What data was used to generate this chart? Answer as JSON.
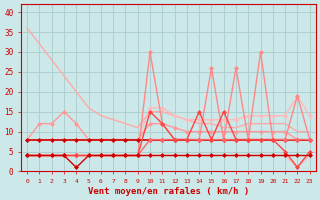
{
  "x": [
    0,
    1,
    2,
    3,
    4,
    5,
    6,
    7,
    8,
    9,
    10,
    11,
    12,
    13,
    14,
    15,
    16,
    17,
    18,
    19,
    20,
    21,
    22,
    23
  ],
  "lines": [
    {
      "y": [
        36,
        32,
        28,
        24,
        20,
        16,
        14,
        13,
        12,
        11,
        15,
        15,
        14,
        13,
        12,
        12,
        11,
        11,
        12,
        12,
        12,
        12,
        10,
        10
      ],
      "color": "#ffaaaa",
      "lw": 1.0,
      "marker": null,
      "zorder": 2
    },
    {
      "y": [
        8,
        8,
        8,
        8,
        8,
        8,
        8,
        8,
        8,
        8,
        16,
        16,
        14,
        13,
        13,
        13,
        13,
        13,
        14,
        14,
        14,
        14,
        19,
        14
      ],
      "color": "#ffbbbb",
      "lw": 1.0,
      "marker": "D",
      "ms": 2.0,
      "zorder": 3
    },
    {
      "y": [
        8,
        12,
        12,
        15,
        12,
        8,
        8,
        8,
        8,
        8,
        12,
        12,
        11,
        10,
        10,
        10,
        10,
        10,
        10,
        10,
        10,
        10,
        8,
        8
      ],
      "color": "#ff9999",
      "lw": 1.0,
      "marker": "D",
      "ms": 2.0,
      "zorder": 3
    },
    {
      "y": [
        8,
        8,
        8,
        8,
        8,
        8,
        8,
        8,
        8,
        8,
        8,
        8,
        8,
        8,
        8,
        8,
        8,
        8,
        8,
        8,
        8,
        8,
        8,
        8
      ],
      "color": "#cc0000",
      "lw": 1.2,
      "marker": "D",
      "ms": 2.0,
      "zorder": 4
    },
    {
      "y": [
        4,
        4,
        4,
        4,
        4,
        4,
        4,
        4,
        4,
        4,
        8,
        8,
        8,
        8,
        8,
        8,
        8,
        8,
        8,
        8,
        8,
        8,
        8,
        8
      ],
      "color": "#ff6666",
      "lw": 1.0,
      "marker": "D",
      "ms": 2.0,
      "zorder": 4
    },
    {
      "y": [
        4,
        4,
        4,
        4,
        4,
        4,
        4,
        4,
        4,
        4,
        15,
        12,
        8,
        8,
        15,
        8,
        15,
        8,
        8,
        8,
        8,
        5,
        1,
        5
      ],
      "color": "#ff4444",
      "lw": 1.0,
      "marker": "D",
      "ms": 2.0,
      "zorder": 4
    },
    {
      "y": [
        4,
        4,
        4,
        4,
        1,
        4,
        4,
        4,
        4,
        4,
        4,
        4,
        4,
        4,
        4,
        4,
        4,
        4,
        4,
        4,
        4,
        4,
        4,
        4
      ],
      "color": "#cc0000",
      "lw": 1.0,
      "marker": "D",
      "ms": 2.0,
      "zorder": 4
    },
    {
      "y": [
        4,
        4,
        4,
        4,
        4,
        4,
        4,
        4,
        4,
        4,
        30,
        12,
        8,
        8,
        8,
        26,
        8,
        26,
        8,
        30,
        8,
        8,
        19,
        8
      ],
      "color": "#ff8888",
      "lw": 1.0,
      "marker": "D",
      "ms": 2.0,
      "zorder": 3
    },
    {
      "y": [
        4,
        4,
        4,
        4,
        4,
        4,
        4,
        4,
        4,
        4,
        4,
        4,
        4,
        4,
        4,
        4,
        4,
        4,
        4,
        4,
        4,
        4,
        1,
        4
      ],
      "color": "#ffbbbb",
      "lw": 1.0,
      "marker": "D",
      "ms": 2.0,
      "zorder": 2
    }
  ],
  "bg_color": "#cce8e8",
  "grid_color": "#aacccc",
  "xlabel": "Vent moyen/en rafales ( km/h )",
  "ylabel_ticks": [
    0,
    5,
    10,
    15,
    20,
    25,
    30,
    35,
    40
  ],
  "xlim": [
    -0.5,
    23.5
  ],
  "ylim": [
    0,
    42
  ]
}
